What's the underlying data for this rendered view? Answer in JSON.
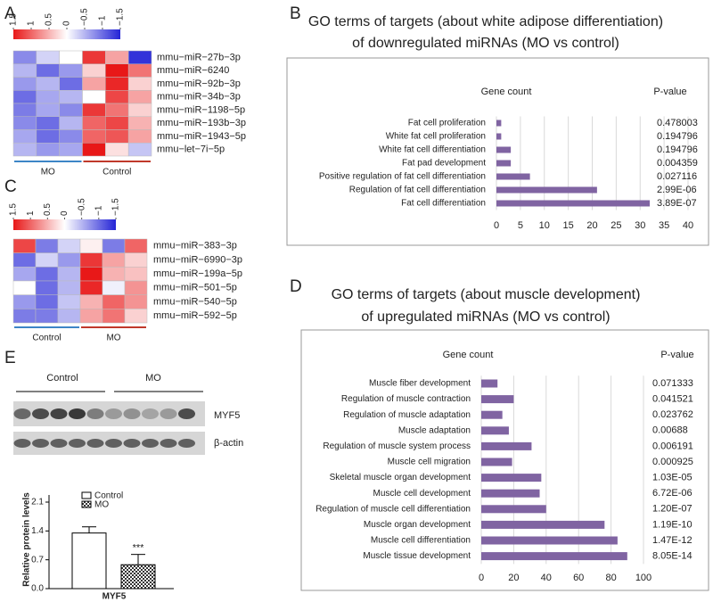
{
  "blot": {
    "panel": "E",
    "groups": [
      "Control",
      "MO"
    ],
    "bands": [
      "MYF5",
      "β-actin"
    ]
  },
  "chart_data": [
    {
      "type": "heatmap",
      "panel": "A",
      "rows": [
        "mmu−miR−27b−3p",
        "mmu−miR−6240",
        "mmu−miR−92b−3p",
        "mmu−miR−34b−3p",
        "mmu−miR−1198−5p",
        "mmu−miR−193b−3p",
        "mmu−miR−1943−5p",
        "mmu−let−7i−5p"
      ],
      "groups": [
        {
          "name": "MO",
          "color": "#3d85c6"
        },
        {
          "name": "Control",
          "color": "#c0392b"
        }
      ],
      "values": [
        [
          -0.8,
          -0.3,
          0.0,
          1.3,
          0.6,
          -1.4
        ],
        [
          -0.5,
          -1.0,
          -0.7,
          0.3,
          1.5,
          0.9
        ],
        [
          -0.7,
          -0.5,
          -1.0,
          0.6,
          1.4,
          0.3
        ],
        [
          -1.0,
          -0.6,
          -0.5,
          0.0,
          1.2,
          0.6
        ],
        [
          -0.9,
          -0.6,
          -0.8,
          1.3,
          0.9,
          0.3
        ],
        [
          -0.8,
          -1.0,
          -0.5,
          1.0,
          1.2,
          0.5
        ],
        [
          -0.6,
          -1.0,
          -0.8,
          1.0,
          1.1,
          0.6
        ],
        [
          -0.5,
          -0.7,
          -0.6,
          1.5,
          0.2,
          -0.4
        ]
      ],
      "colorbar_range": [
        1.5,
        -1.5
      ],
      "colorbar_ticks": [
        1.5,
        1,
        0.5,
        0,
        {
          "value": -0.5,
          "label": "−0.5"
        },
        {
          "value": -1,
          "label": "−1"
        },
        {
          "value": -1.5,
          "label": "−1.5"
        }
      ],
      "colors": {
        "high": "#e81818",
        "mid": "#ffffff",
        "low": "#2424d6"
      }
    },
    {
      "type": "hbar",
      "panel": "B",
      "title": [
        "GO terms of targets (about white adipose differentiation)",
        "of downregulated miRNAs (MO vs control)"
      ],
      "value_header": "Gene count",
      "p_header": "P-value",
      "categories": [
        "Fat cell proliferation",
        "White fat cell proliferation",
        "White fat cell differentiation",
        "Fat pad development",
        "Positive regulation of fat cell differentiation",
        "Regulation of fat cell differentiation",
        "Fat cell differentiation"
      ],
      "values": [
        1,
        1,
        3,
        3,
        7,
        21,
        32
      ],
      "p_values": [
        "0.478003",
        "0.194796",
        "0.194796",
        "0.004359",
        "0.027116",
        "2.99E-06",
        "3.89E-07"
      ],
      "color": "#8064a2",
      "xlim": [
        0,
        40
      ],
      "xticks": [
        0,
        5,
        10,
        15,
        20,
        25,
        30,
        35,
        40
      ],
      "grid": true
    },
    {
      "type": "heatmap",
      "panel": "C",
      "rows": [
        "mmu−miR−383−3p",
        "mmu−miR−6990−3p",
        "mmu−miR−199a−5p",
        "mmu−miR−501−5p",
        "mmu−miR−540−5p",
        "mmu−miR−592−5p"
      ],
      "groups": [
        {
          "name": "Control",
          "color": "#3d85c6"
        },
        {
          "name": "MO",
          "color": "#c0392b"
        }
      ],
      "values": [
        [
          1.2,
          -0.9,
          -0.3,
          0.1,
          -0.9,
          1.0
        ],
        [
          -1.0,
          -0.3,
          -0.7,
          1.3,
          0.6,
          0.3
        ],
        [
          -0.6,
          -1.0,
          -0.5,
          1.5,
          0.5,
          0.4
        ],
        [
          0.0,
          -1.0,
          -0.5,
          1.4,
          -0.1,
          0.7
        ],
        [
          -0.7,
          -1.0,
          -0.4,
          0.5,
          1.0,
          0.7
        ],
        [
          -0.9,
          -0.9,
          -0.5,
          0.6,
          0.9,
          0.3
        ]
      ],
      "colorbar_range": [
        1.5,
        -1.5
      ],
      "colorbar_ticks": [
        1.5,
        1,
        0.5,
        0,
        {
          "value": -0.5,
          "label": "−0.5"
        },
        {
          "value": -1,
          "label": "−1"
        },
        {
          "value": -1.5,
          "label": "−1.5"
        }
      ],
      "colors": {
        "high": "#e81818",
        "mid": "#ffffff",
        "low": "#2424d6"
      }
    },
    {
      "type": "hbar",
      "panel": "D",
      "title": [
        "GO terms of targets (about muscle development)",
        "of upregulated miRNAs (MO vs control)"
      ],
      "value_header": "Gene count",
      "p_header": "P-value",
      "categories": [
        "Muscle fiber development",
        "Regulation of muscle contraction",
        "Regulation of muscle adaptation",
        "Muscle adaptation",
        "Regulation of muscle system process",
        "Muscle cell migration",
        "Skeletal muscle organ development",
        "Muscle cell development",
        "Regulation of muscle cell differentiation",
        "Muscle organ development",
        "Muscle cell differentiation",
        "Muscle tissue development"
      ],
      "values": [
        10,
        20,
        13,
        17,
        31,
        19,
        37,
        36,
        40,
        76,
        84,
        90
      ],
      "p_values": [
        "0.071333",
        "0.041521",
        "0.023762",
        "0.00688",
        "0.006191",
        "0.000925",
        "1.03E-05",
        "6.72E-06",
        "1.20E-07",
        "1.19E-10",
        "1.47E-12",
        "8.05E-14"
      ],
      "color": "#8064a2",
      "xlim": [
        0,
        100
      ],
      "xticks": [
        0,
        20,
        40,
        60,
        80,
        100
      ],
      "grid": true
    },
    {
      "type": "bar",
      "categories": [
        "MYF5"
      ],
      "ylabel": "Relative protein levels",
      "series": [
        {
          "name": "Control",
          "color": "#ffffff",
          "values": [
            1.35
          ],
          "errors": [
            0.15
          ]
        },
        {
          "name": "MO",
          "color": "#000000",
          "pattern": "checker",
          "values": [
            0.58
          ],
          "errors": [
            0.25
          ],
          "annotation": "***"
        }
      ],
      "ylim": [
        0,
        2.1
      ],
      "yticks": [
        {
          "value": 0,
          "label": "0.0"
        },
        0.7,
        1.4,
        2.1
      ]
    }
  ]
}
